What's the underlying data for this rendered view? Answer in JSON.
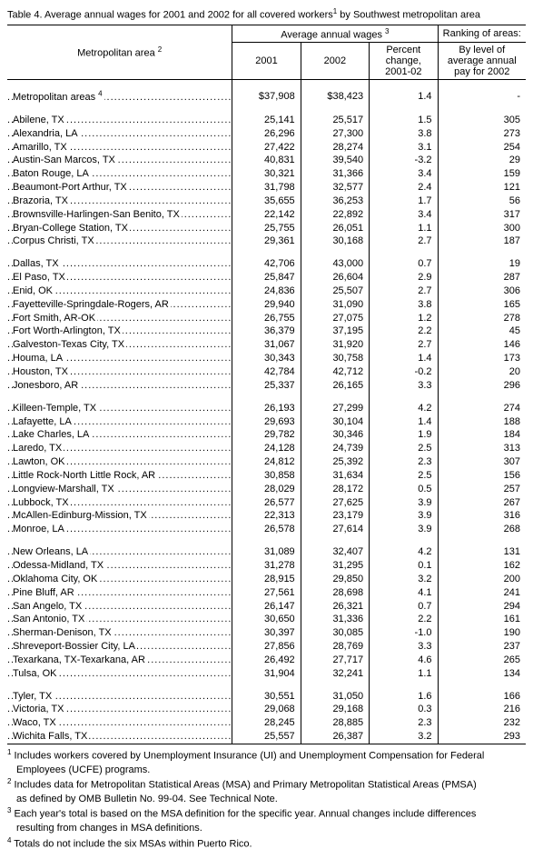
{
  "title_html": "Table 4.  Average annual wages for 2001 and 2002 for all covered workers<sup>1</sup> by Southwest metropolitan area",
  "headers": {
    "metro_html": "Metropolitan area <sup>2</sup>",
    "avg_wages_html": "Average annual wages <sup>3</sup>",
    "ranking": "Ranking of areas:",
    "y2001": "2001",
    "y2002": "2002",
    "pct": "Percent change, 2001-02",
    "rank_desc": "By level of average annual pay for 2002"
  },
  "total_row_html": "Metropolitan areas <sup>4</sup>",
  "total": {
    "y2001": "$37,908",
    "y2002": "$38,423",
    "pct": "1.4",
    "rank": "-"
  },
  "groups": [
    [
      {
        "area": "Abilene, TX",
        "y2001": "25,141",
        "y2002": "25,517",
        "pct": "1.5",
        "rank": "305"
      },
      {
        "area": "Alexandria, LA",
        "y2001": "26,296",
        "y2002": "27,300",
        "pct": "3.8",
        "rank": "273"
      },
      {
        "area": "Amarillo, TX",
        "y2001": "27,422",
        "y2002": "28,274",
        "pct": "3.1",
        "rank": "254"
      },
      {
        "area": "Austin-San Marcos, TX",
        "y2001": "40,831",
        "y2002": "39,540",
        "pct": "-3.2",
        "rank": "29"
      },
      {
        "area": "Baton Rouge, LA",
        "y2001": "30,321",
        "y2002": "31,366",
        "pct": "3.4",
        "rank": "159"
      },
      {
        "area": "Beaumont-Port Arthur, TX",
        "y2001": "31,798",
        "y2002": "32,577",
        "pct": "2.4",
        "rank": "121"
      },
      {
        "area": "Brazoria, TX",
        "y2001": "35,655",
        "y2002": "36,253",
        "pct": "1.7",
        "rank": "56"
      },
      {
        "area": "Brownsville-Harlingen-San Benito, TX",
        "y2001": "22,142",
        "y2002": "22,892",
        "pct": "3.4",
        "rank": "317"
      },
      {
        "area": "Bryan-College Station, TX",
        "y2001": "25,755",
        "y2002": "26,051",
        "pct": "1.1",
        "rank": "300"
      },
      {
        "area": "Corpus Christi, TX",
        "y2001": "29,361",
        "y2002": "30,168",
        "pct": "2.7",
        "rank": "187"
      }
    ],
    [
      {
        "area": "Dallas, TX",
        "y2001": "42,706",
        "y2002": "43,000",
        "pct": "0.7",
        "rank": "19"
      },
      {
        "area": "El Paso, TX",
        "y2001": "25,847",
        "y2002": "26,604",
        "pct": "2.9",
        "rank": "287"
      },
      {
        "area": "Enid, OK",
        "y2001": "24,836",
        "y2002": "25,507",
        "pct": "2.7",
        "rank": "306"
      },
      {
        "area": "Fayetteville-Springdale-Rogers, AR",
        "y2001": "29,940",
        "y2002": "31,090",
        "pct": "3.8",
        "rank": "165"
      },
      {
        "area": "Fort Smith, AR-OK",
        "y2001": "26,755",
        "y2002": "27,075",
        "pct": "1.2",
        "rank": "278"
      },
      {
        "area": "Fort Worth-Arlington, TX",
        "y2001": "36,379",
        "y2002": "37,195",
        "pct": "2.2",
        "rank": "45"
      },
      {
        "area": "Galveston-Texas City, TX",
        "y2001": "31,067",
        "y2002": "31,920",
        "pct": "2.7",
        "rank": "146"
      },
      {
        "area": "Houma, LA",
        "y2001": "30,343",
        "y2002": "30,758",
        "pct": "1.4",
        "rank": "173"
      },
      {
        "area": "Houston, TX",
        "y2001": "42,784",
        "y2002": "42,712",
        "pct": "-0.2",
        "rank": "20"
      },
      {
        "area": "Jonesboro, AR",
        "y2001": "25,337",
        "y2002": "26,165",
        "pct": "3.3",
        "rank": "296"
      }
    ],
    [
      {
        "area": "Killeen-Temple, TX",
        "y2001": "26,193",
        "y2002": "27,299",
        "pct": "4.2",
        "rank": "274"
      },
      {
        "area": "Lafayette, LA",
        "y2001": "29,693",
        "y2002": "30,104",
        "pct": "1.4",
        "rank": "188"
      },
      {
        "area": "Lake Charles, LA",
        "y2001": "29,782",
        "y2002": "30,346",
        "pct": "1.9",
        "rank": "184"
      },
      {
        "area": "Laredo, TX",
        "y2001": "24,128",
        "y2002": "24,739",
        "pct": "2.5",
        "rank": "313"
      },
      {
        "area": "Lawton, OK",
        "y2001": "24,812",
        "y2002": "25,392",
        "pct": "2.3",
        "rank": "307"
      },
      {
        "area": "Little Rock-North Little Rock, AR",
        "y2001": "30,858",
        "y2002": "31,634",
        "pct": "2.5",
        "rank": "156"
      },
      {
        "area": "Longview-Marshall, TX",
        "y2001": "28,029",
        "y2002": "28,172",
        "pct": "0.5",
        "rank": "257"
      },
      {
        "area": "Lubbock, TX",
        "y2001": "26,577",
        "y2002": "27,625",
        "pct": "3.9",
        "rank": "267"
      },
      {
        "area": "McAllen-Edinburg-Mission, TX",
        "y2001": "22,313",
        "y2002": "23,179",
        "pct": "3.9",
        "rank": "316"
      },
      {
        "area": "Monroe, LA",
        "y2001": "26,578",
        "y2002": "27,614",
        "pct": "3.9",
        "rank": "268"
      }
    ],
    [
      {
        "area": "New Orleans, LA",
        "y2001": "31,089",
        "y2002": "32,407",
        "pct": "4.2",
        "rank": "131"
      },
      {
        "area": "Odessa-Midland, TX",
        "y2001": "31,278",
        "y2002": "31,295",
        "pct": "0.1",
        "rank": "162"
      },
      {
        "area": "Oklahoma City, OK",
        "y2001": "28,915",
        "y2002": "29,850",
        "pct": "3.2",
        "rank": "200"
      },
      {
        "area": "Pine Bluff, AR",
        "y2001": "27,561",
        "y2002": "28,698",
        "pct": "4.1",
        "rank": "241"
      },
      {
        "area": "San Angelo, TX",
        "y2001": "26,147",
        "y2002": "26,321",
        "pct": "0.7",
        "rank": "294"
      },
      {
        "area": "San Antonio, TX",
        "y2001": "30,650",
        "y2002": "31,336",
        "pct": "2.2",
        "rank": "161"
      },
      {
        "area": "Sherman-Denison, TX",
        "y2001": "30,397",
        "y2002": "30,085",
        "pct": "-1.0",
        "rank": "190"
      },
      {
        "area": "Shreveport-Bossier City, LA",
        "y2001": "27,856",
        "y2002": "28,769",
        "pct": "3.3",
        "rank": "237"
      },
      {
        "area": "Texarkana, TX-Texarkana, AR",
        "y2001": "26,492",
        "y2002": "27,717",
        "pct": "4.6",
        "rank": "265"
      },
      {
        "area": "Tulsa, OK",
        "y2001": "31,904",
        "y2002": "32,241",
        "pct": "1.1",
        "rank": "134"
      }
    ],
    [
      {
        "area": "Tyler, TX",
        "y2001": "30,551",
        "y2002": "31,050",
        "pct": "1.6",
        "rank": "166"
      },
      {
        "area": "Victoria, TX",
        "y2001": "29,068",
        "y2002": "29,168",
        "pct": "0.3",
        "rank": "216"
      },
      {
        "area": "Waco, TX",
        "y2001": "28,245",
        "y2002": "28,885",
        "pct": "2.3",
        "rank": "232"
      },
      {
        "area": "Wichita Falls, TX",
        "y2001": "25,557",
        "y2002": "26,387",
        "pct": "3.2",
        "rank": "293"
      }
    ]
  ],
  "footnotes": [
    {
      "html": "<sup>1</sup> Includes workers covered by Unemployment Insurance (UI) and Unemployment Compensation for Federal"
    },
    {
      "html": "Employees (UCFE) programs.",
      "indent": true
    },
    {
      "html": "<sup>2</sup> Includes data for Metropolitan Statistical Areas (MSA) and Primary Metropolitan Statistical Areas (PMSA)"
    },
    {
      "html": "as defined by OMB Bulletin No. 99-04.  See Technical Note.",
      "indent": true
    },
    {
      "html": "<sup>3</sup> Each year's total is based on the MSA definition for the specific year.  Annual changes include differences"
    },
    {
      "html": "resulting from changes in MSA definitions.",
      "indent": true
    },
    {
      "html": "<sup>4</sup> Totals do not include the six MSAs within Puerto Rico."
    }
  ]
}
